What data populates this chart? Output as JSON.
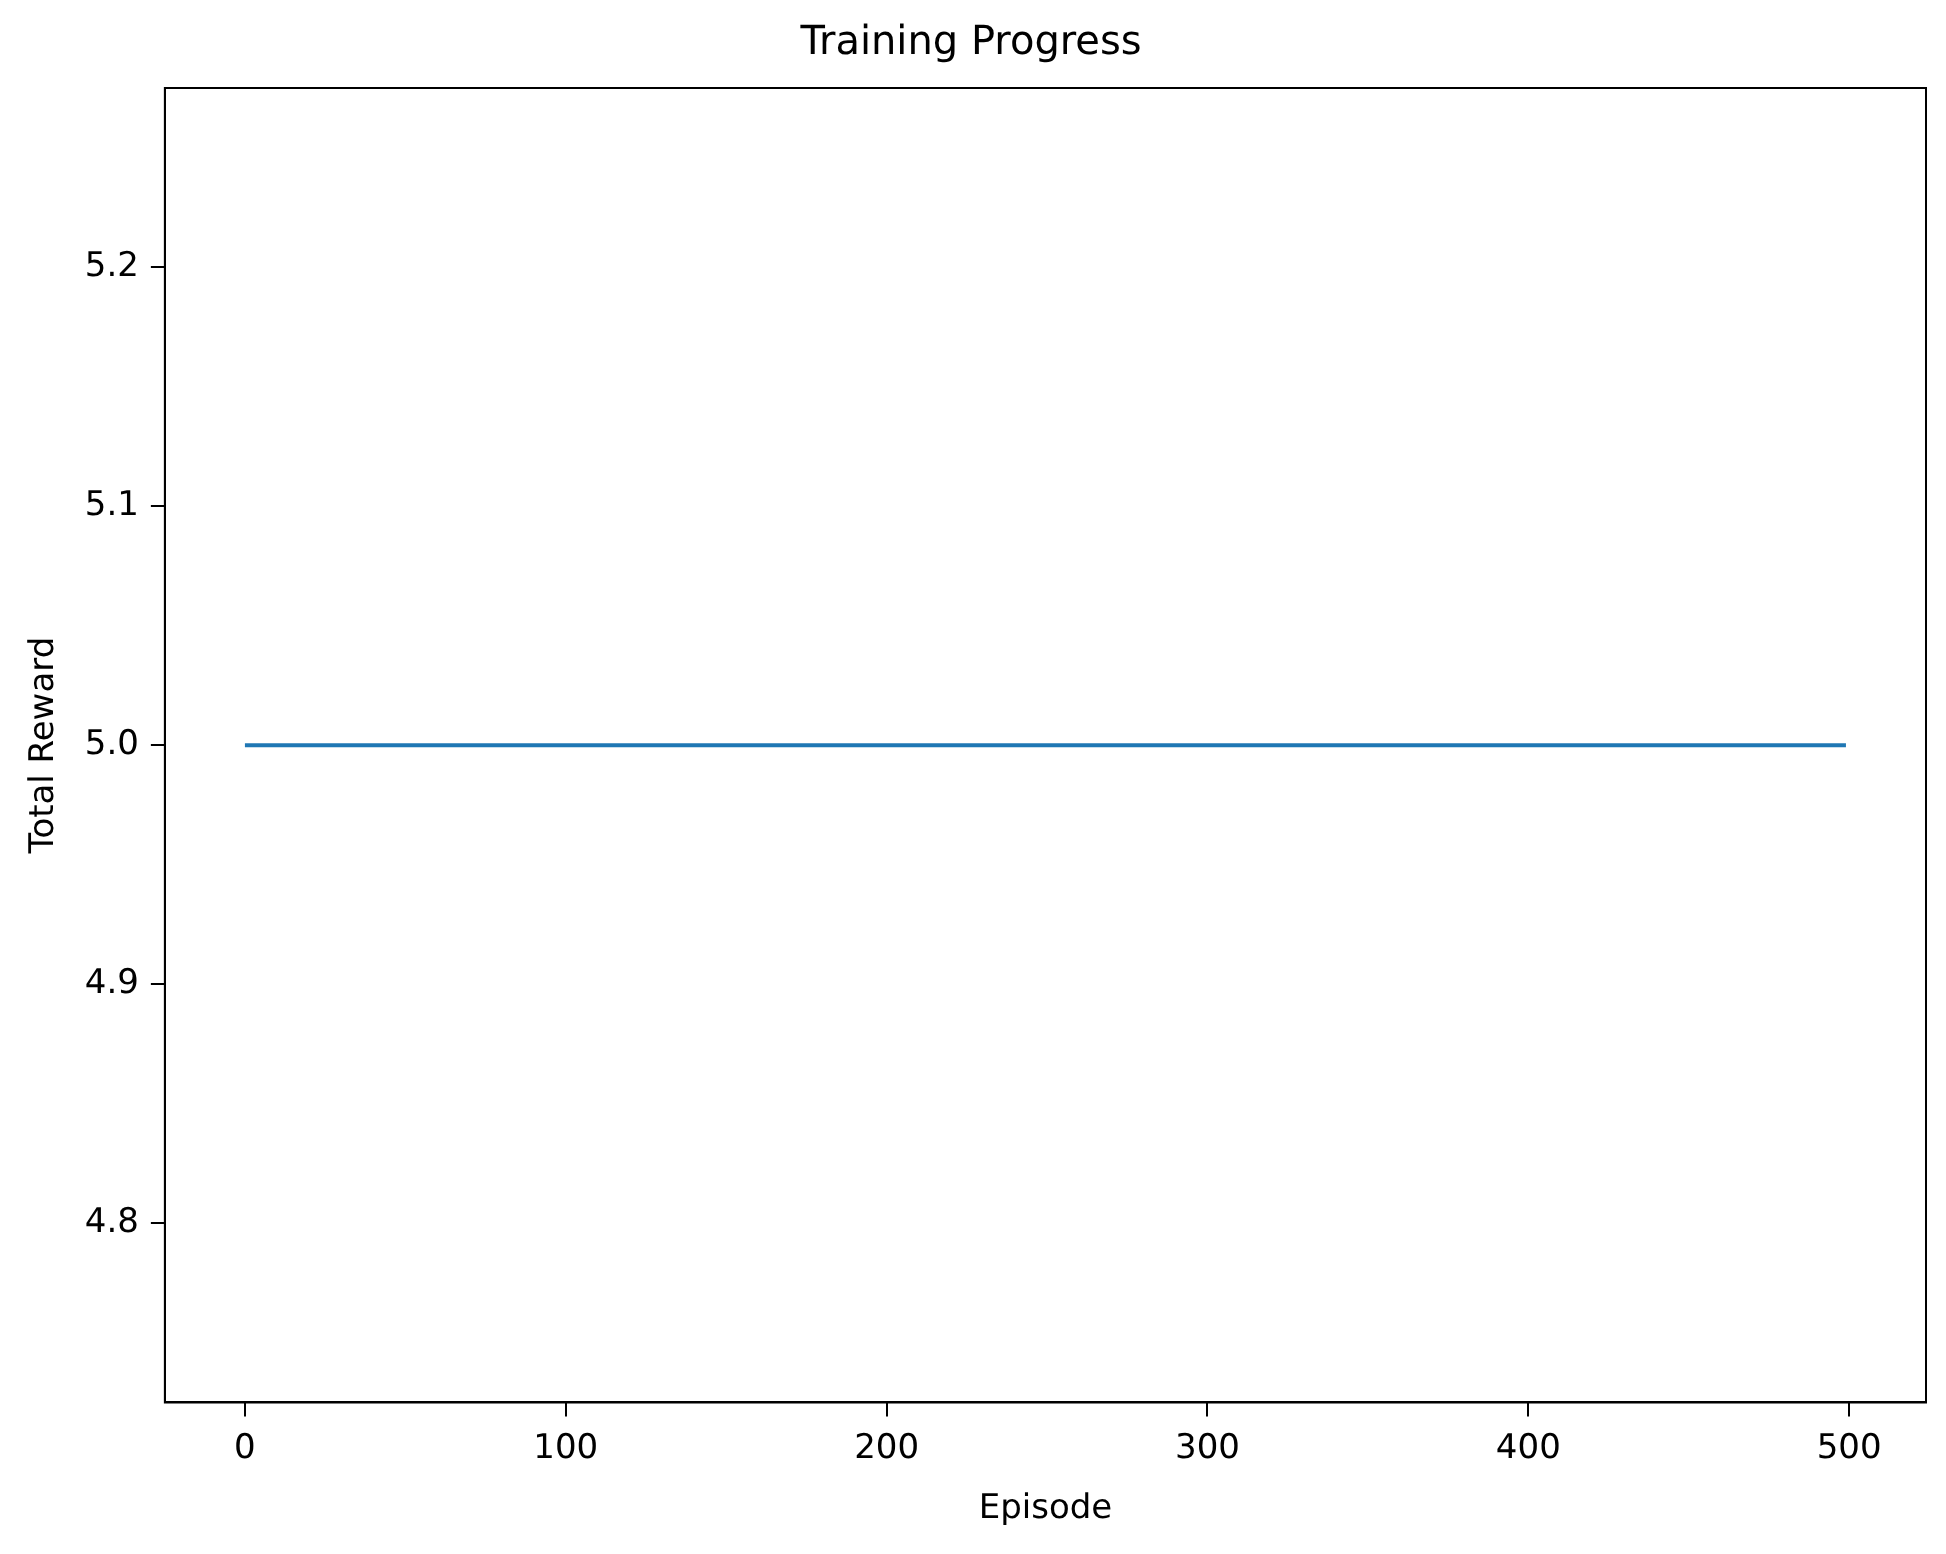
{
  "chart_data": {
    "type": "line",
    "title": "Training Progress",
    "xlabel": "Episode",
    "ylabel": "Total Reward",
    "x": [
      0,
      499
    ],
    "series": [
      {
        "color": "#1f77b4",
        "values": [
          5.0,
          5.0
        ]
      }
    ],
    "xlim": [
      -24.95,
      523.95
    ],
    "xticks": [
      0,
      100,
      200,
      300,
      400,
      500
    ],
    "ylim": [
      4.725,
      5.275
    ],
    "yticks": [
      {
        "value": 4.8,
        "label": "4.8"
      },
      {
        "value": 4.9,
        "label": "4.9"
      },
      {
        "value": 5.0,
        "label": "5.0"
      },
      {
        "value": 5.1,
        "label": "5.1"
      },
      {
        "value": 5.2,
        "label": "5.2"
      }
    ],
    "grid": false,
    "legend": false,
    "marker": "none",
    "line_style": "solid"
  }
}
